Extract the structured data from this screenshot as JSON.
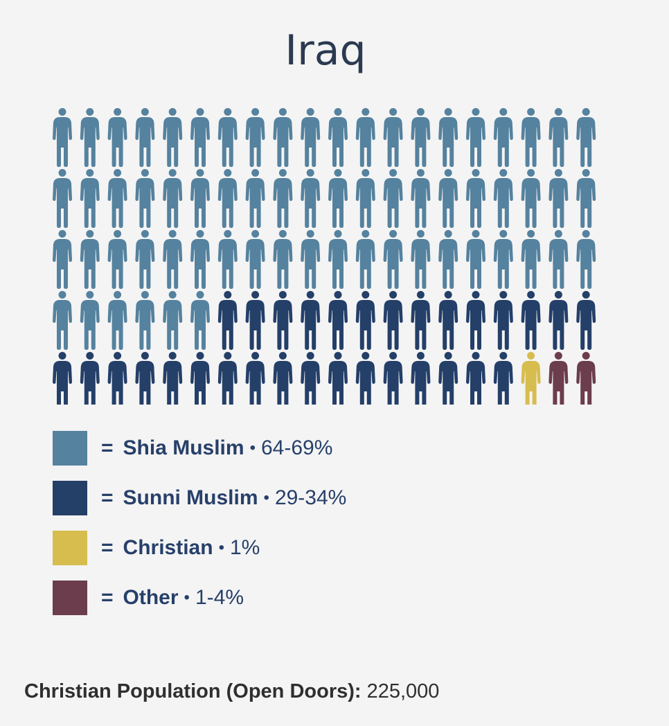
{
  "chart_data": {
    "type": "pictogram",
    "title": "Iraq",
    "total_icons": 100,
    "rows": 5,
    "columns": 20,
    "series": [
      {
        "name": "Shia Muslim",
        "range": "64-69%",
        "icons": 66,
        "color": "#55829e"
      },
      {
        "name": "Sunni Muslim",
        "range": "29-34%",
        "icons": 31,
        "color": "#243f68"
      },
      {
        "name": "Christian",
        "range": "1%",
        "icons": 1,
        "color": "#d6bd4e"
      },
      {
        "name": "Other",
        "range": "1-4%",
        "icons": 2,
        "color": "#6c3d4c"
      }
    ],
    "legend_separator": "=",
    "legend_bullet": "•",
    "icon": "person-icon"
  },
  "footer": {
    "label": "Christian Population (Open Doors):",
    "value": "225,000"
  }
}
